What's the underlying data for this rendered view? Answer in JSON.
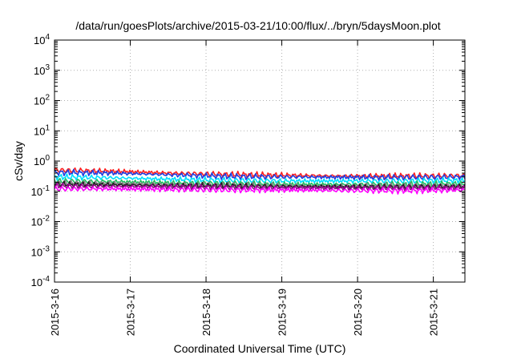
{
  "chart_data": {
    "type": "line",
    "title": "/data/run/goesPlots/archive/2015-03-21/10:00/flux/../bryn/5daysMoon.plot",
    "xlabel": "Coordinated Universal Time (UTC)",
    "ylabel": "cSv/day",
    "yscale": "log",
    "ylim": [
      0.0001,
      10000
    ],
    "xlim": [
      "2015-03-16 00:00",
      "2015-03-21 10:00"
    ],
    "y_ticks": [
      {
        "base": "10",
        "exp": "-4"
      },
      {
        "base": "10",
        "exp": "-3"
      },
      {
        "base": "10",
        "exp": "-2"
      },
      {
        "base": "10",
        "exp": "-1"
      },
      {
        "base": "10",
        "exp": "0"
      },
      {
        "base": "10",
        "exp": "1"
      },
      {
        "base": "10",
        "exp": "2"
      },
      {
        "base": "10",
        "exp": "3"
      },
      {
        "base": "10",
        "exp": "4"
      }
    ],
    "x_ticks": [
      "2015-3-16",
      "2015-3-17",
      "2015-3-18",
      "2015-3-19",
      "2015-3-20",
      "2015-3-21"
    ],
    "grid": true,
    "legend": "none",
    "series": [
      {
        "color": "#ff2020",
        "values": [
          0.5,
          0.46,
          0.4,
          0.36,
          0.34,
          0.32,
          0.32,
          0.33
        ]
      },
      {
        "color": "#1f3ee0",
        "values": [
          0.42,
          0.4,
          0.35,
          0.31,
          0.3,
          0.29,
          0.29,
          0.3
        ]
      },
      {
        "color": "#00e0ff",
        "values": [
          0.3,
          0.28,
          0.25,
          0.23,
          0.22,
          0.22,
          0.22,
          0.23
        ]
      },
      {
        "color": "#20c060",
        "values": [
          0.22,
          0.21,
          0.19,
          0.18,
          0.17,
          0.17,
          0.17,
          0.18
        ]
      },
      {
        "color": "#808080",
        "values": [
          0.19,
          0.18,
          0.17,
          0.16,
          0.155,
          0.15,
          0.15,
          0.155
        ]
      },
      {
        "color": "#202020",
        "values": [
          0.17,
          0.165,
          0.155,
          0.15,
          0.145,
          0.14,
          0.14,
          0.145
        ]
      },
      {
        "color": "#9a0090",
        "values": [
          0.15,
          0.145,
          0.14,
          0.135,
          0.13,
          0.13,
          0.13,
          0.13
        ]
      },
      {
        "color": "#ff00ff",
        "values": [
          0.12,
          0.12,
          0.115,
          0.11,
          0.11,
          0.105,
          0.105,
          0.11
        ]
      }
    ]
  }
}
